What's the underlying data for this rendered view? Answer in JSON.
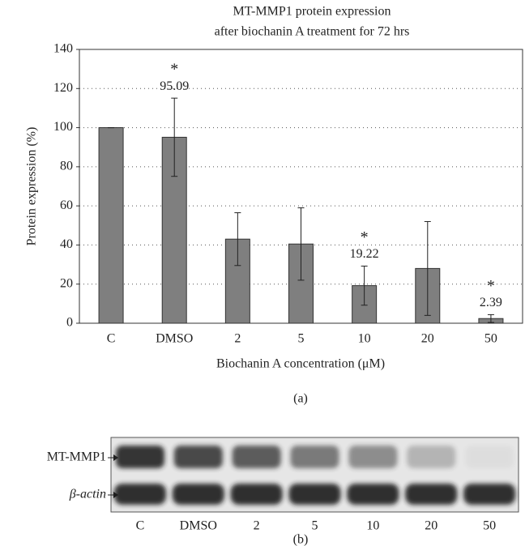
{
  "chart_data": {
    "type": "bar",
    "title": "MT-MMP1 protein expression",
    "subtitle": "after biochanin A treatment for 72 hrs",
    "y_label": "Protein expression (%)",
    "x_label": "Biochanin A concentration (μM)",
    "panel_label": "(a)",
    "categories": [
      "C",
      "DMSO",
      "2",
      "5",
      "10",
      "20",
      "50"
    ],
    "values": [
      100,
      95.09,
      43,
      40.5,
      19.22,
      28,
      2.39
    ],
    "errors": [
      0,
      20,
      13.5,
      18.5,
      10,
      24,
      2
    ],
    "value_labels": [
      null,
      "95.09",
      null,
      null,
      "19.22",
      null,
      "2.39"
    ],
    "significance": [
      null,
      "*",
      null,
      null,
      "*",
      null,
      "*"
    ],
    "color": "#7f7f7f",
    "ylim": [
      0,
      140
    ],
    "yticks": [
      0,
      20,
      40,
      60,
      80,
      100,
      120,
      140
    ],
    "grid": true
  },
  "blot": {
    "rows": [
      "MT-MMP1",
      "β-actin"
    ],
    "lanes": [
      "C",
      "DMSO",
      "2",
      "5",
      "10",
      "20",
      "50"
    ],
    "panel_label": "(b)"
  }
}
